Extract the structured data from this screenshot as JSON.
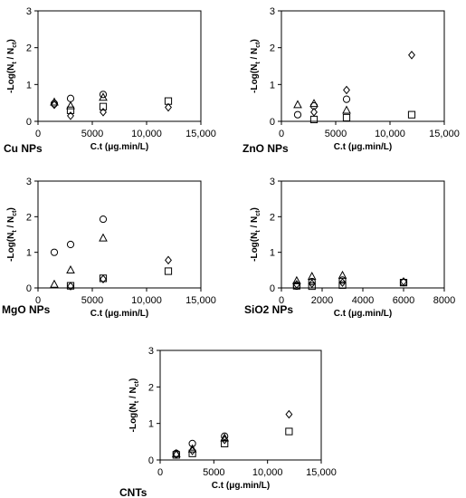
{
  "figure": {
    "y_label": {
      "prefix": "-Log(N",
      "t_sub": "t",
      "mid": " / N",
      "ct_sub": "ct",
      "suffix": ")"
    }
  },
  "chart_data": [
    {
      "type": "scatter",
      "panel_label": "Cu NPs",
      "xlabel": "C.t (μg.min/L)",
      "xlim": [
        0,
        15000
      ],
      "xticks": [
        "0",
        "5000",
        "10,000",
        "15,000"
      ],
      "ylim": [
        0,
        3
      ],
      "yticks": [
        "0",
        "1",
        "2",
        "3"
      ],
      "grid": false,
      "series": [
        {
          "marker": "diamond",
          "points": [
            [
              1500,
              0.45
            ],
            [
              3000,
              0.15
            ],
            [
              6000,
              0.25
            ],
            [
              12000,
              0.38
            ]
          ]
        },
        {
          "marker": "square",
          "points": [
            [
              3000,
              0.3
            ],
            [
              6000,
              0.4
            ],
            [
              12000,
              0.55
            ]
          ]
        },
        {
          "marker": "triangle",
          "points": [
            [
              1500,
              0.52
            ],
            [
              3000,
              0.42
            ],
            [
              6000,
              0.65
            ]
          ]
        },
        {
          "marker": "circle",
          "points": [
            [
              1500,
              0.48
            ],
            [
              3000,
              0.62
            ],
            [
              6000,
              0.73
            ]
          ]
        }
      ]
    },
    {
      "type": "scatter",
      "panel_label": "ZnO NPs",
      "xlabel": "C.t (μg.min/L)",
      "xlim": [
        0,
        15000
      ],
      "xticks": [
        "0",
        "5000",
        "10,000",
        "15,000"
      ],
      "ylim": [
        0,
        3
      ],
      "yticks": [
        "0",
        "1",
        "2",
        "3"
      ],
      "grid": false,
      "series": [
        {
          "marker": "diamond",
          "points": [
            [
              3000,
              0.25
            ],
            [
              6000,
              0.85
            ],
            [
              12000,
              1.8
            ]
          ]
        },
        {
          "marker": "square",
          "points": [
            [
              3000,
              0.05
            ],
            [
              6000,
              0.1
            ],
            [
              12000,
              0.18
            ]
          ]
        },
        {
          "marker": "triangle",
          "points": [
            [
              1500,
              0.45
            ],
            [
              3000,
              0.48
            ],
            [
              6000,
              0.3
            ]
          ]
        },
        {
          "marker": "circle",
          "points": [
            [
              1500,
              0.18
            ],
            [
              3000,
              0.42
            ],
            [
              6000,
              0.6
            ]
          ]
        }
      ]
    },
    {
      "type": "scatter",
      "panel_label": "MgO NPs",
      "xlabel": "C.t (μg.min/L)",
      "xlim": [
        0,
        15000
      ],
      "xticks": [
        "0",
        "5000",
        "10,000",
        "15,000"
      ],
      "ylim": [
        0,
        3
      ],
      "yticks": [
        "0",
        "1",
        "2",
        "3"
      ],
      "grid": false,
      "series": [
        {
          "marker": "diamond",
          "points": [
            [
              3000,
              0.05
            ],
            [
              6000,
              0.25
            ],
            [
              12000,
              0.78
            ]
          ]
        },
        {
          "marker": "square",
          "points": [
            [
              3000,
              0.06
            ],
            [
              6000,
              0.27
            ],
            [
              12000,
              0.47
            ]
          ]
        },
        {
          "marker": "triangle",
          "points": [
            [
              1500,
              0.1
            ],
            [
              3000,
              0.5
            ],
            [
              6000,
              1.4
            ]
          ]
        },
        {
          "marker": "circle",
          "points": [
            [
              1500,
              1.0
            ],
            [
              3000,
              1.22
            ],
            [
              6000,
              1.93
            ]
          ]
        }
      ]
    },
    {
      "type": "scatter",
      "panel_label": "SiO2 NPs",
      "xlabel": "C.t (μg.min/L)",
      "xlim": [
        0,
        8000
      ],
      "xticks": [
        "0",
        "2000",
        "4000",
        "6000",
        "8000"
      ],
      "ylim": [
        0,
        3
      ],
      "yticks": [
        "0",
        "1",
        "2",
        "3"
      ],
      "grid": false,
      "series": [
        {
          "marker": "diamond",
          "points": [
            [
              750,
              0.1
            ],
            [
              1500,
              0.12
            ],
            [
              3000,
              0.15
            ],
            [
              6000,
              0.18
            ]
          ]
        },
        {
          "marker": "square",
          "points": [
            [
              750,
              0.06
            ],
            [
              1500,
              0.05
            ],
            [
              3000,
              0.08
            ],
            [
              6000,
              0.15
            ]
          ]
        },
        {
          "marker": "triangle",
          "points": [
            [
              750,
              0.2
            ],
            [
              1500,
              0.32
            ],
            [
              3000,
              0.35
            ]
          ]
        },
        {
          "marker": "circle",
          "points": [
            [
              750,
              0.05
            ],
            [
              1500,
              0.18
            ],
            [
              3000,
              0.22
            ],
            [
              6000,
              0.15
            ]
          ]
        }
      ]
    },
    {
      "type": "scatter",
      "panel_label": "CNTs",
      "xlabel": "C.t (μg.min/L)",
      "xlim": [
        0,
        15000
      ],
      "xticks": [
        "0",
        "5000",
        "10,000",
        "15,000"
      ],
      "ylim": [
        0,
        3
      ],
      "yticks": [
        "0",
        "1",
        "2",
        "3"
      ],
      "grid": false,
      "series": [
        {
          "marker": "diamond",
          "points": [
            [
              1500,
              0.15
            ],
            [
              3000,
              0.25
            ],
            [
              6000,
              0.55
            ],
            [
              12000,
              1.25
            ]
          ]
        },
        {
          "marker": "square",
          "points": [
            [
              1500,
              0.14
            ],
            [
              3000,
              0.18
            ],
            [
              6000,
              0.45
            ],
            [
              12000,
              0.78
            ]
          ]
        },
        {
          "marker": "triangle",
          "points": [
            [
              1500,
              0.17
            ],
            [
              3000,
              0.3
            ],
            [
              6000,
              0.6
            ]
          ]
        },
        {
          "marker": "circle",
          "points": [
            [
              1500,
              0.18
            ],
            [
              3000,
              0.45
            ],
            [
              6000,
              0.65
            ]
          ]
        }
      ]
    }
  ]
}
